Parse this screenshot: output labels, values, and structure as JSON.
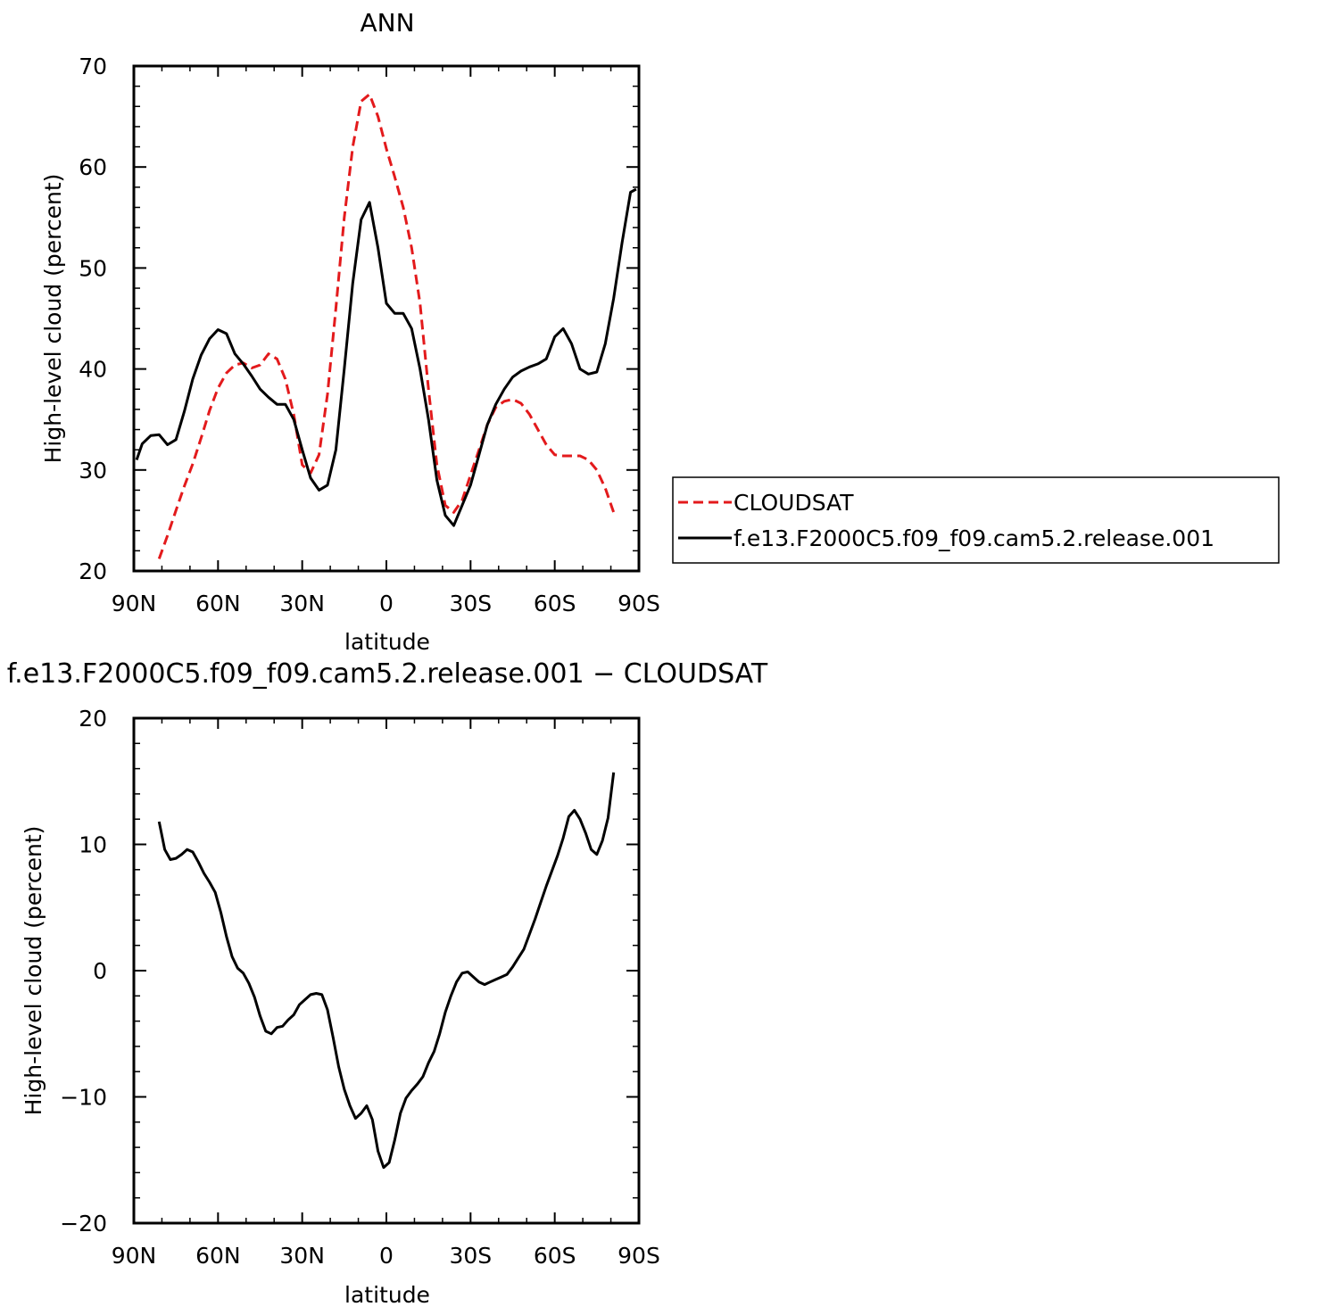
{
  "chart_data": [
    {
      "type": "line",
      "title": "ANN",
      "xlabel": "latitude",
      "ylabel": "High-level cloud (percent)",
      "xlim": [
        90,
        -90
      ],
      "ylim": [
        20,
        70
      ],
      "xticks": [
        90,
        60,
        30,
        0,
        -30,
        -60,
        -90
      ],
      "xtick_labels": [
        "90N",
        "60N",
        "30N",
        "0",
        "30S",
        "60S",
        "90S"
      ],
      "yticks": [
        20,
        30,
        40,
        50,
        60,
        70
      ],
      "ytick_labels": [
        "20",
        "30",
        "40",
        "50",
        "60",
        "70"
      ],
      "legend_position": "right",
      "series": [
        {
          "name": "CLOUDSAT",
          "color": "#e31a1c",
          "dash": "dashed",
          "x": [
            81,
            78,
            75,
            72,
            69,
            66,
            63,
            60,
            57,
            54,
            51,
            48,
            45,
            42,
            39,
            36,
            33,
            30,
            27,
            24,
            21,
            18,
            15,
            12,
            9,
            6,
            3,
            0,
            -3,
            -6,
            -9,
            -12,
            -15,
            -18,
            -21,
            -24,
            -27,
            -30,
            -33,
            -36,
            -39,
            -42,
            -45,
            -48,
            -51,
            -54,
            -57,
            -60,
            -63,
            -66,
            -69,
            -72,
            -75,
            -78,
            -81
          ],
          "y": [
            21.2,
            23.5,
            26,
            28.4,
            30.6,
            33.2,
            35.9,
            38.1,
            39.6,
            40.4,
            40.6,
            40.1,
            40.4,
            41.5,
            41,
            39,
            35.5,
            30.5,
            29.7,
            31.5,
            37.5,
            46,
            55,
            62,
            66.5,
            67.2,
            65,
            61.8,
            59,
            56,
            52,
            46.5,
            38,
            30.5,
            26.5,
            25.8,
            27,
            29.5,
            32,
            34.5,
            36.2,
            36.8,
            37,
            36.6,
            35.5,
            34,
            32.5,
            31.5,
            31.4,
            31.4,
            31.4,
            31,
            30,
            28.2,
            25.8
          ]
        },
        {
          "name": "f.e13.F2000C5.f09_f09.cam5.2.release.001",
          "color": "#000000",
          "dash": "solid",
          "x": [
            89,
            87,
            84,
            81,
            78,
            75,
            72,
            69,
            66,
            63,
            60,
            57,
            54,
            51,
            48,
            45,
            42,
            39,
            36,
            33,
            30,
            27,
            24,
            21,
            18,
            15,
            12,
            9,
            6,
            3,
            0,
            -3,
            -6,
            -9,
            -12,
            -15,
            -18,
            -21,
            -24,
            -27,
            -30,
            -33,
            -36,
            -39,
            -42,
            -45,
            -48,
            -51,
            -54,
            -57,
            -60,
            -63,
            -66,
            -69,
            -72,
            -75,
            -78,
            -81,
            -84,
            -87,
            -89
          ],
          "y": [
            31,
            32.6,
            33.4,
            33.5,
            32.5,
            33,
            35.8,
            39,
            41.4,
            43,
            43.9,
            43.5,
            41.5,
            40.5,
            39.3,
            38,
            37.2,
            36.5,
            36.5,
            35,
            32,
            29.2,
            28,
            28.5,
            32,
            40,
            48.5,
            54.8,
            56.5,
            52,
            46.5,
            45.5,
            45.5,
            44,
            40,
            35,
            29,
            25.5,
            24.5,
            26.5,
            28.5,
            31.5,
            34.5,
            36.5,
            38,
            39.2,
            39.8,
            40.2,
            40.5,
            41,
            43.2,
            44,
            42.5,
            40,
            39.5,
            39.7,
            42.5,
            47,
            52.5,
            57.5,
            57.8
          ]
        }
      ],
      "legend": [
        "CLOUDSAT",
        "f.e13.F2000C5.f09_f09.cam5.2.release.001"
      ]
    },
    {
      "type": "line",
      "title": "f.e13.F2000C5.f09_f09.cam5.2.release.001 − CLOUDSAT",
      "xlabel": "latitude",
      "ylabel": "High-level cloud (percent)",
      "xlim": [
        90,
        -90
      ],
      "ylim": [
        -20,
        20
      ],
      "xticks": [
        90,
        60,
        30,
        0,
        -30,
        -60,
        -90
      ],
      "xtick_labels": [
        "90N",
        "60N",
        "30N",
        "0",
        "30S",
        "60S",
        "90S"
      ],
      "yticks": [
        -20,
        -10,
        0,
        10,
        20
      ],
      "ytick_labels": [
        "−20",
        "−10",
        "0",
        "10",
        "20"
      ],
      "series": [
        {
          "color": "#000000",
          "dash": "solid",
          "x": [
            81,
            79,
            77,
            75,
            73,
            71,
            69,
            67,
            65,
            63,
            61,
            59,
            57,
            55,
            53,
            51,
            49,
            47,
            45,
            43,
            41,
            39,
            37,
            35,
            33,
            31,
            29,
            27,
            25,
            23,
            21,
            19,
            17,
            15,
            13,
            11,
            9,
            7,
            5,
            3,
            1,
            -1,
            -3,
            -5,
            -7,
            -9,
            -11,
            -13,
            -15,
            -17,
            -19,
            -21,
            -23,
            -25,
            -27,
            -29,
            -31,
            -33,
            -35,
            -37,
            -39,
            -41,
            -43,
            -45,
            -47,
            -49,
            -51,
            -53,
            -55,
            -57,
            -59,
            -61,
            -63,
            -65,
            -67,
            -69,
            -71,
            -73,
            -75,
            -77,
            -79,
            -81
          ],
          "y": [
            11.8,
            9.6,
            8.8,
            8.9,
            9.2,
            9.6,
            9.4,
            8.6,
            7.7,
            7,
            6.2,
            4.6,
            2.7,
            1.1,
            0.2,
            -0.2,
            -1,
            -2.1,
            -3.6,
            -4.8,
            -5,
            -4.5,
            -4.4,
            -3.9,
            -3.5,
            -2.7,
            -2.3,
            -1.9,
            -1.8,
            -1.9,
            -3.1,
            -5.3,
            -7.6,
            -9.4,
            -10.7,
            -11.7,
            -11.3,
            -10.7,
            -11.8,
            -14.3,
            -15.6,
            -15.2,
            -13.4,
            -11.3,
            -10.1,
            -9.5,
            -9,
            -8.4,
            -7.3,
            -6.4,
            -5,
            -3.3,
            -2,
            -0.9,
            -0.2,
            -0.1,
            -0.5,
            -0.9,
            -1.1,
            -0.9,
            -0.7,
            -0.5,
            -0.3,
            0.3,
            1,
            1.7,
            2.9,
            4.1,
            5.4,
            6.7,
            7.9,
            9.1,
            10.5,
            12.2,
            12.7,
            12,
            10.9,
            9.6,
            9.2,
            10.3,
            12.1,
            15.7
          ]
        }
      ]
    }
  ]
}
